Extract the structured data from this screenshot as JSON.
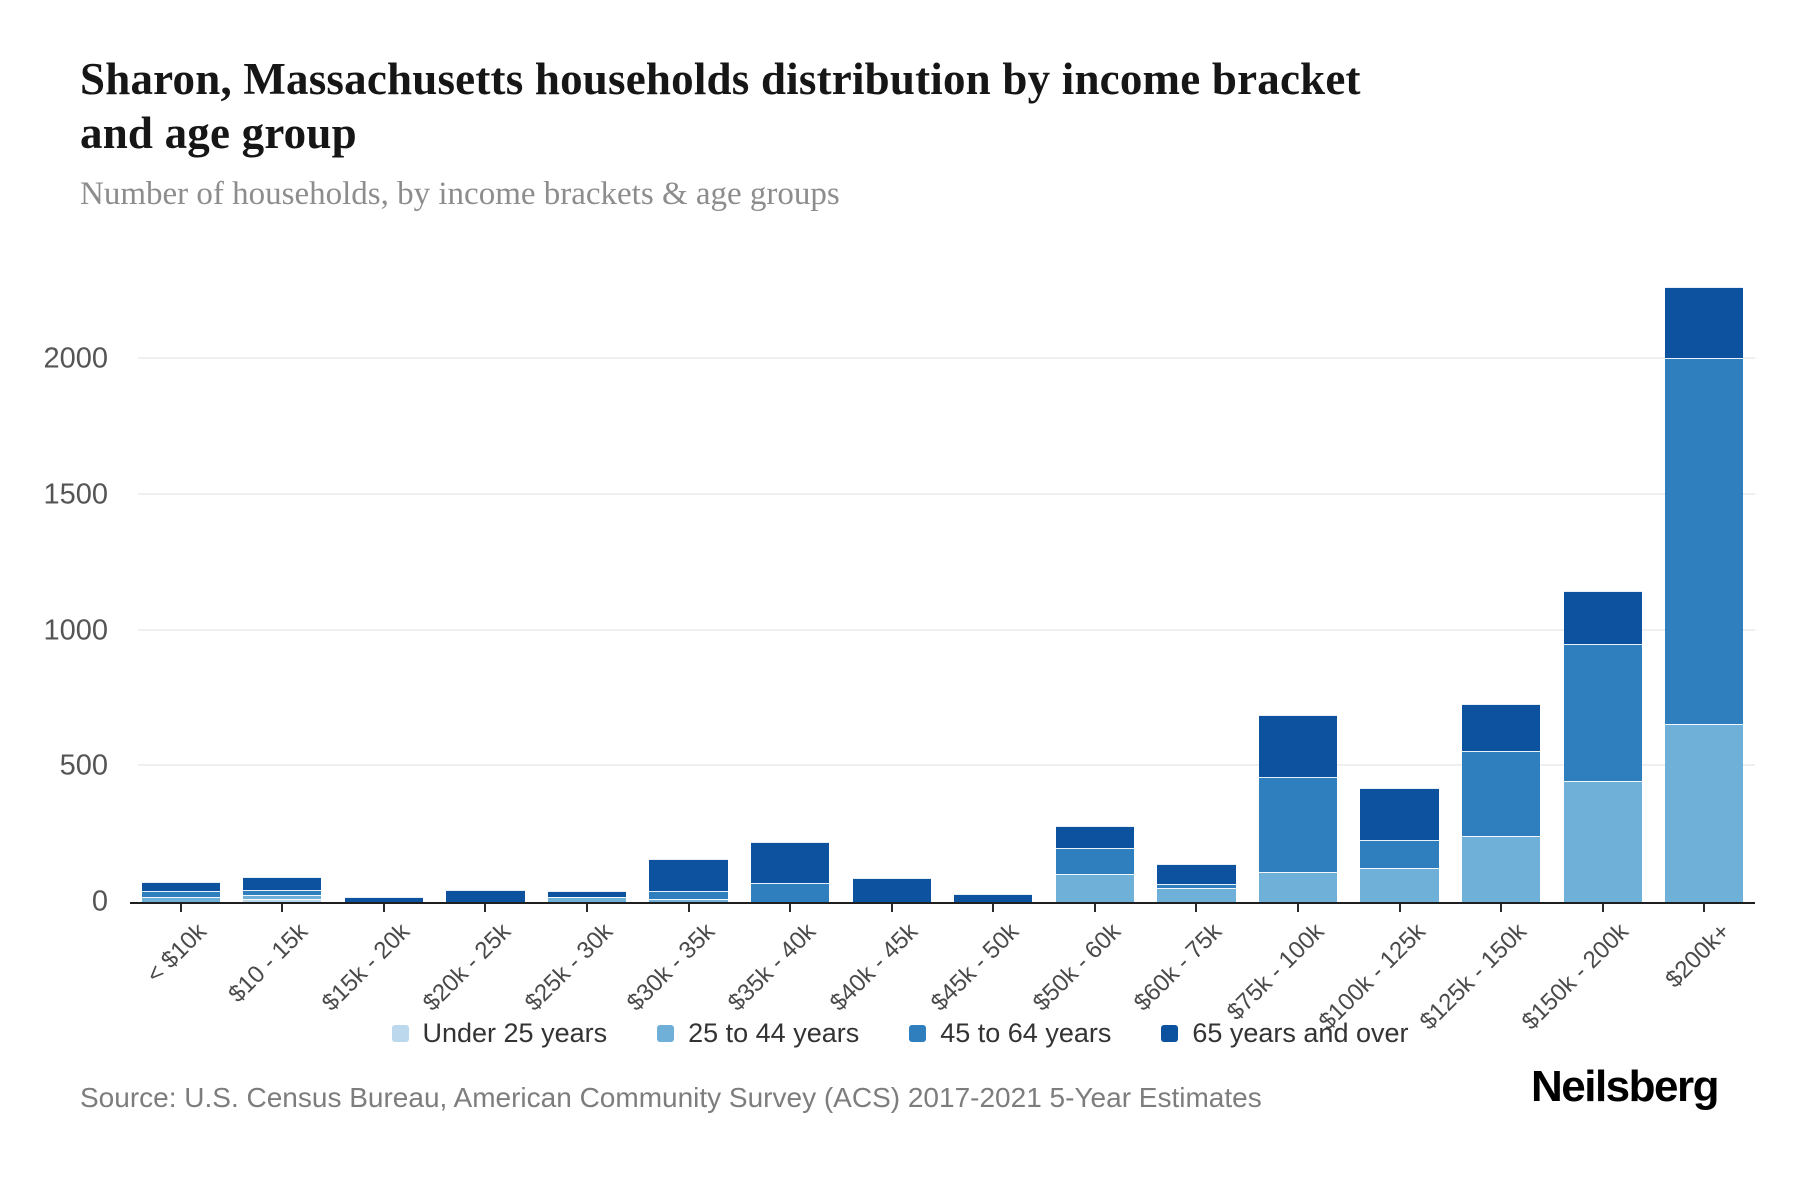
{
  "page": {
    "title_line1": "Sharon, Massachusetts households distribution by income bracket",
    "title_line2": "and age group",
    "subtitle": "Number of households, by income brackets & age groups",
    "source": "Source: U.S. Census Bureau, American Community Survey (ACS) 2017-2021 5-Year Estimates",
    "brand": "Neilsberg"
  },
  "colors": {
    "under_25": "#bcd8ec",
    "age_25_44": "#6fb0d9",
    "age_45_64": "#2f7fbe",
    "age_65_plus": "#0d529e",
    "gridline": "#efefef",
    "axis": "#1f1f1f"
  },
  "chart_data": {
    "type": "bar",
    "stacked": true,
    "title": "Sharon, Massachusetts households distribution by income bracket and age group",
    "subtitle": "Number of households, by income brackets & age groups",
    "xlabel": "",
    "ylabel": "Number of households",
    "grid": "horizontal",
    "legend_position": "bottom",
    "ylim": [
      0,
      2350
    ],
    "yticks": [
      0,
      500,
      1000,
      1500,
      2000
    ],
    "categories": [
      "< $10k",
      "$10 - 15k",
      "$15k - 20k",
      "$20k - 25k",
      "$25k - 30k",
      "$30k - 35k",
      "$35k - 40k",
      "$40k - 45k",
      "$45k - 50k",
      "$50k - 60k",
      "$60k - 75k",
      "$75k - 100k",
      "$100k - 125k",
      "$125k - 150k",
      "$150k - 200k",
      "$200k+"
    ],
    "series": [
      {
        "name": "Under 25 years",
        "color": "#bcd8ec",
        "values": [
          0,
          12,
          0,
          0,
          0,
          0,
          0,
          0,
          0,
          0,
          0,
          0,
          0,
          0,
          0,
          0
        ]
      },
      {
        "name": "25 to 44 years",
        "color": "#6fb0d9",
        "values": [
          18,
          14,
          0,
          0,
          20,
          10,
          0,
          0,
          0,
          104,
          51,
          110,
          125,
          245,
          445,
          655
        ]
      },
      {
        "name": "45 to 64 years",
        "color": "#2f7fbe",
        "values": [
          22,
          18,
          0,
          0,
          0,
          30,
          70,
          0,
          0,
          95,
          15,
          350,
          105,
          310,
          505,
          1350
        ]
      },
      {
        "name": "65 years and over",
        "color": "#0d529e",
        "values": [
          35,
          48,
          18,
          45,
          20,
          120,
          150,
          90,
          30,
          81,
          75,
          230,
          190,
          175,
          195,
          260
        ]
      }
    ]
  }
}
